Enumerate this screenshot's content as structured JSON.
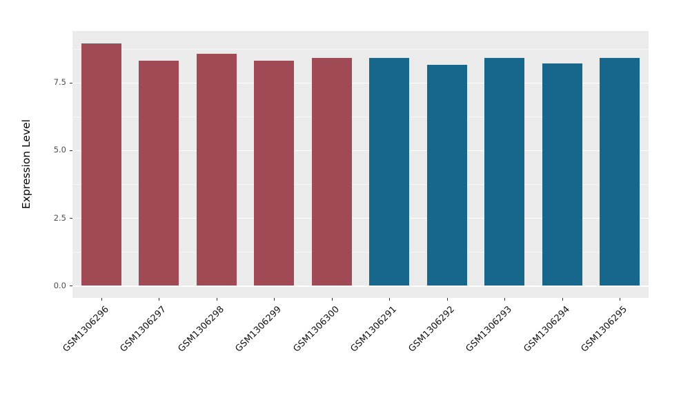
{
  "chart_data": {
    "type": "bar",
    "title": "",
    "xlabel": "",
    "ylabel": "Expression Level",
    "categories": [
      "GSM1306296",
      "GSM1306297",
      "GSM1306298",
      "GSM1306299",
      "GSM1306300",
      "GSM1306291",
      "GSM1306292",
      "GSM1306293",
      "GSM1306294",
      "GSM1306295"
    ],
    "values": [
      8.95,
      8.3,
      8.55,
      8.3,
      8.4,
      8.4,
      8.15,
      8.4,
      8.2,
      8.4
    ],
    "bar_colors": [
      "#9F4A54",
      "#9F4A54",
      "#9F4A54",
      "#9F4A54",
      "#9F4A54",
      "#17678D",
      "#17678D",
      "#17678D",
      "#17678D",
      "#17678D"
    ],
    "group_colors": {
      "group1": "#9F4A54",
      "group2": "#17678D"
    },
    "yticks": [
      0.0,
      2.5,
      5.0,
      7.5
    ],
    "ytick_labels": [
      "0.0",
      "2.5",
      "5.0",
      "7.5"
    ],
    "yticks_minor": [
      1.25,
      3.75,
      6.25,
      8.75
    ],
    "ylim": [
      -0.45,
      9.4
    ],
    "panel_background": "#EBEBEB",
    "grid_color": "#FFFFFF",
    "grid": "on",
    "legend_position": "none",
    "bar_width_fraction": 0.7,
    "x_label_rotation_deg": -45
  }
}
